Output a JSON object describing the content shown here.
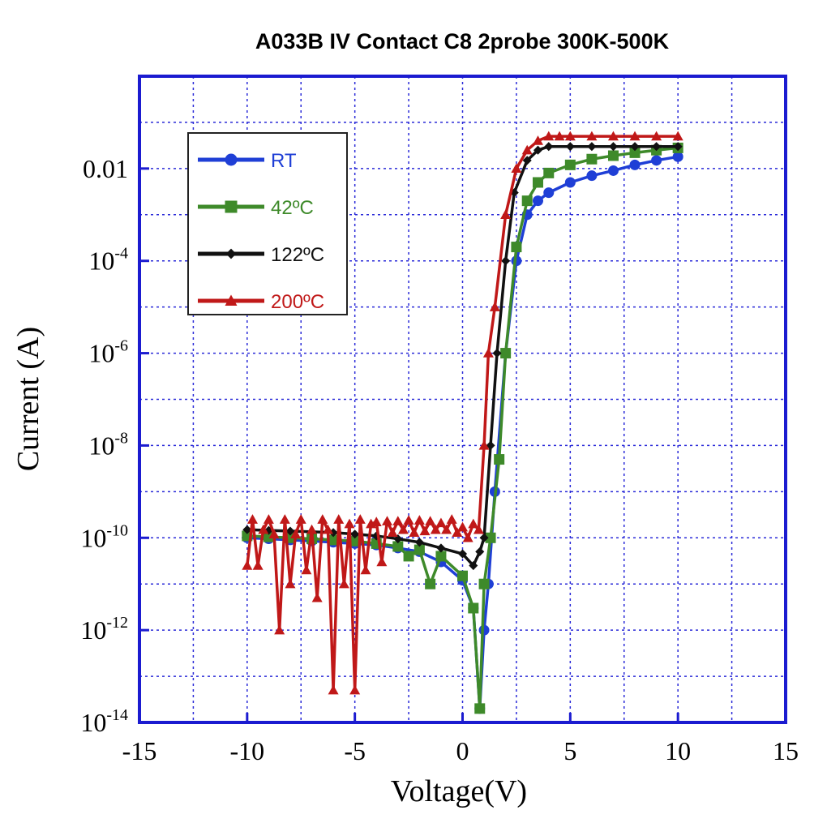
{
  "chart_data": {
    "type": "line",
    "title": "A033B IV Contact C8 2probe 300K-500K",
    "xlabel": "Voltage(V)",
    "ylabel": "Current (A)",
    "xlim": [
      -15,
      15
    ],
    "ylim": [
      1e-14,
      1
    ],
    "yscale": "log",
    "grid": true,
    "legend_position": "top-left",
    "x_ticks": [
      "-15",
      "-10",
      "-5",
      "0",
      "5",
      "10",
      "15"
    ],
    "x_tick_values": [
      -15,
      -10,
      -5,
      0,
      5,
      10,
      15
    ],
    "y_ticks": [
      {
        "value": 0.01,
        "base": "0.01",
        "exp": ""
      },
      {
        "value": 0.0001,
        "base": "10",
        "exp": "-4"
      },
      {
        "value": 1e-06,
        "base": "10",
        "exp": "-6"
      },
      {
        "value": 1e-08,
        "base": "10",
        "exp": "-8"
      },
      {
        "value": 1e-10,
        "base": "10",
        "exp": "-10"
      },
      {
        "value": 1e-12,
        "base": "10",
        "exp": "-12"
      },
      {
        "value": 1e-14,
        "base": "10",
        "exp": "-14"
      }
    ],
    "series": [
      {
        "name": "RT",
        "color": "#1f3fd6",
        "marker": "circle",
        "x": [
          -10,
          -9,
          -8,
          -7,
          -6,
          -5,
          -4,
          -3,
          -2,
          -1,
          0,
          0.5,
          0.8,
          1.0,
          1.2,
          1.5,
          2.0,
          2.5,
          3.0,
          3.5,
          4.0,
          5.0,
          6.0,
          7.0,
          8.0,
          9.0,
          10.0
        ],
        "y": [
          1e-10,
          9.5e-11,
          9e-11,
          8.5e-11,
          8e-11,
          7.5e-11,
          7e-11,
          6e-11,
          5e-11,
          3e-11,
          1.2e-11,
          3e-12,
          2e-14,
          1e-12,
          1e-11,
          1e-09,
          1e-06,
          0.0001,
          0.001,
          0.002,
          0.003,
          0.005,
          0.007,
          0.009,
          0.012,
          0.015,
          0.018
        ]
      },
      {
        "name": "42ºC",
        "color": "#3e8a2a",
        "marker": "square",
        "x": [
          -10,
          -9,
          -8,
          -7,
          -6,
          -5,
          -4,
          -3,
          -2.5,
          -2,
          -1.5,
          -1,
          0,
          0.5,
          0.8,
          1.0,
          1.3,
          1.7,
          2.0,
          2.5,
          3.0,
          3.5,
          4.0,
          5.0,
          6.0,
          7.0,
          8.0,
          9.0,
          10.0
        ],
        "y": [
          1.1e-10,
          1.05e-10,
          1e-10,
          9.5e-11,
          9e-11,
          8.5e-11,
          7.5e-11,
          6.5e-11,
          4e-11,
          5.5e-11,
          1e-11,
          4e-11,
          1.5e-11,
          3e-12,
          2e-14,
          1e-11,
          1e-10,
          5e-09,
          1e-06,
          0.0002,
          0.002,
          0.005,
          0.008,
          0.012,
          0.016,
          0.019,
          0.022,
          0.025,
          0.028
        ]
      },
      {
        "name": "122ºC",
        "color": "#111111",
        "marker": "diamond",
        "x": [
          -10,
          -9,
          -8,
          -7,
          -6,
          -5,
          -4,
          -3,
          -2,
          -1,
          0,
          0.5,
          0.8,
          1.0,
          1.3,
          1.6,
          2.0,
          2.4,
          3.0,
          3.5,
          4.0,
          5.0,
          6.0,
          7.0,
          8.0,
          9.0,
          10.0
        ],
        "y": [
          1.5e-10,
          1.45e-10,
          1.4e-10,
          1.35e-10,
          1.3e-10,
          1.2e-10,
          1.1e-10,
          9.5e-11,
          8e-11,
          6e-11,
          4.5e-11,
          2.5e-11,
          5e-11,
          1e-10,
          1e-08,
          1e-06,
          0.0001,
          0.003,
          0.015,
          0.025,
          0.03,
          0.03,
          0.03,
          0.03,
          0.03,
          0.03,
          0.03
        ]
      },
      {
        "name": "200ºC",
        "color": "#c01818",
        "marker": "triangle",
        "x": [
          -10,
          -9.75,
          -9.5,
          -9.25,
          -9,
          -8.75,
          -8.5,
          -8.25,
          -8,
          -7.75,
          -7.5,
          -7.25,
          -7,
          -6.75,
          -6.5,
          -6.25,
          -6,
          -5.75,
          -5.5,
          -5.25,
          -5,
          -4.75,
          -4.5,
          -4.25,
          -4,
          -3.75,
          -3.5,
          -3.25,
          -3,
          -2.75,
          -2.5,
          -2.25,
          -2,
          -1.75,
          -1.5,
          -1.25,
          -1,
          -0.75,
          -0.5,
          -0.25,
          0,
          0.25,
          0.5,
          0.75,
          1.0,
          1.2,
          1.5,
          2.0,
          2.5,
          3.0,
          3.5,
          4.0,
          4.5,
          5.0,
          6.0,
          7.0,
          8.0,
          9.0,
          10.0
        ],
        "y": [
          2.5e-11,
          2.5e-10,
          2.5e-11,
          1.5e-10,
          2.5e-10,
          1.2e-10,
          1e-12,
          2.5e-10,
          1e-11,
          1.2e-10,
          2.5e-10,
          2e-11,
          1.5e-10,
          5e-12,
          2.5e-10,
          1.5e-10,
          5e-14,
          2.5e-10,
          1e-11,
          2e-10,
          5e-14,
          2.5e-10,
          2e-11,
          2e-10,
          2.2e-10,
          3e-11,
          2.3e-10,
          1.3e-10,
          2.3e-10,
          1.5e-10,
          2.4e-10,
          1.3e-10,
          2.4e-10,
          1.4e-10,
          2.3e-10,
          1.5e-10,
          2.1e-10,
          1.5e-10,
          2.5e-10,
          1.3e-10,
          1.7e-10,
          1e-10,
          2e-10,
          1.5e-10,
          1e-08,
          1e-06,
          1e-05,
          0.001,
          0.01,
          0.025,
          0.04,
          0.05,
          0.05,
          0.05,
          0.05,
          0.05,
          0.05,
          0.05,
          0.05
        ]
      }
    ]
  }
}
